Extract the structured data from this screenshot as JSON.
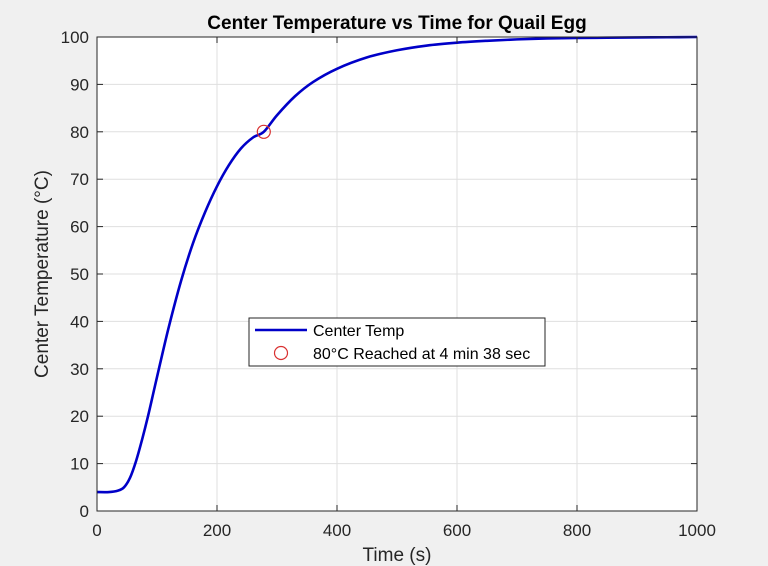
{
  "chart_data": {
    "type": "line",
    "title": "Center Temperature vs Time for Quail Egg",
    "xlabel": "Time (s)",
    "ylabel": "Center Temperature (°C)",
    "xlim": [
      0,
      1000
    ],
    "ylim": [
      0,
      100
    ],
    "xticks": [
      0,
      200,
      400,
      600,
      800,
      1000
    ],
    "yticks": [
      0,
      10,
      20,
      30,
      40,
      50,
      60,
      70,
      80,
      90,
      100
    ],
    "grid": true,
    "legend_position": "center",
    "series": [
      {
        "name": "Center Temp",
        "color": "#0000c8",
        "x": [
          0,
          20,
          35,
          45,
          55,
          65,
          75,
          85,
          95,
          105,
          120,
          140,
          160,
          180,
          200,
          220,
          240,
          260,
          278,
          300,
          330,
          360,
          400,
          450,
          500,
          550,
          600,
          650,
          700,
          750,
          800,
          850,
          900,
          950,
          1000
        ],
        "y": [
          4,
          4,
          4.3,
          5,
          7,
          10.5,
          15,
          20,
          25.5,
          31,
          39,
          48.5,
          56.5,
          63,
          68.5,
          73,
          76.5,
          78.8,
          80,
          83.5,
          87.5,
          90.5,
          93.3,
          95.7,
          97.2,
          98.2,
          98.8,
          99.2,
          99.5,
          99.7,
          99.8,
          99.85,
          99.9,
          99.95,
          100
        ]
      },
      {
        "name": "80°C Reached at 4 min 38 sec",
        "marker": "circle",
        "color": "#d93030",
        "x": [
          278
        ],
        "y": [
          80
        ]
      }
    ]
  }
}
